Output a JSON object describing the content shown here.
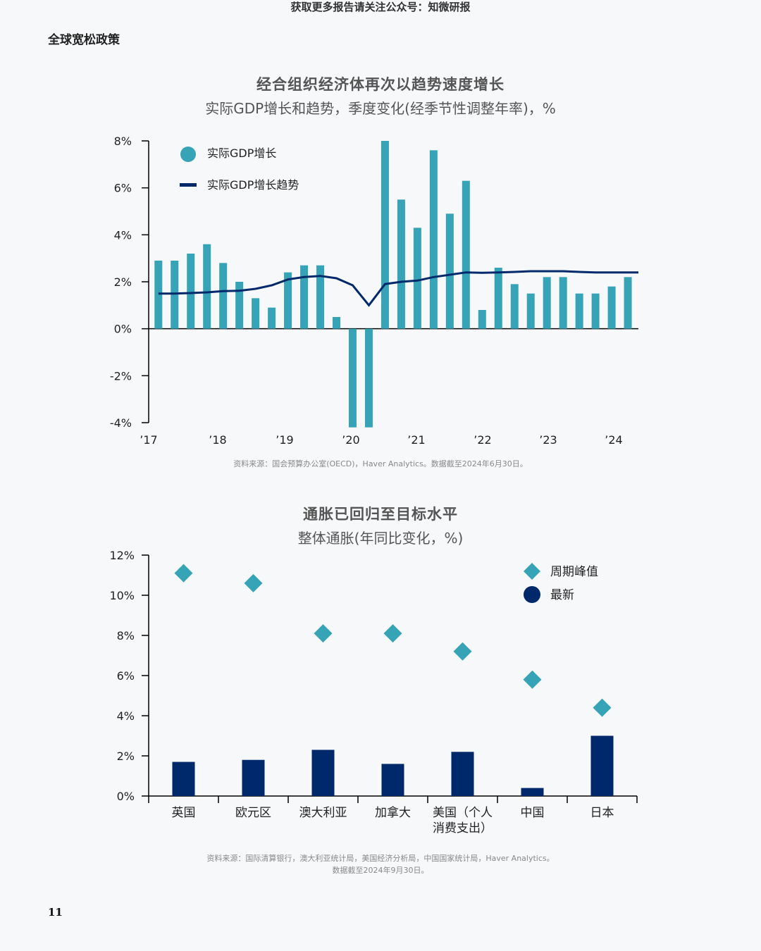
{
  "header": {
    "banner": "获取更多报告请关注公众号：知微研报",
    "section": "全球宽松政策"
  },
  "page_number": "11",
  "colors": {
    "teal": "#36a3b7",
    "navy": "#00296b",
    "axis": "#000000"
  },
  "charts": {
    "gdp": {
      "title": "经合组织经济体再次以趋势速度增长",
      "subtitle": "实际GDP增长和趋势，季度变化(经季节性调整年率)，%",
      "source": "资料来源：国会预算办公室(OECD)，Haver Analytics。数据截至2024年6月30日。"
    },
    "inflation": {
      "title": "通胀已回归至目标水平",
      "subtitle": "整体通胀(年同比变化，%)",
      "source_line1": "资料来源：国际清算银行，澳大利亚统计局，美国经济分析局，中国国家统计局，Haver Analytics。",
      "source_line2": "数据截至2024年9月30日。"
    }
  },
  "chart_data": [
    {
      "type": "bar",
      "title": "经合组织经济体再次以趋势速度增长",
      "subtitle": "实际GDP增长和趋势，季度变化(经季节性调整年率)，%",
      "ylim": [
        -4,
        8
      ],
      "yticks": [
        8,
        6,
        4,
        2,
        0,
        -2,
        -4
      ],
      "ytick_labels": [
        "8%",
        "6%",
        "4%",
        "2%",
        "0%",
        "-2%",
        "-4%"
      ],
      "xtick_labels": [
        "’17",
        "’18",
        "’19",
        "’20",
        "’21",
        "’22",
        "’23",
        "’24"
      ],
      "legend_position": "top-left",
      "series": [
        {
          "name": "实际GDP增长",
          "kind": "bar",
          "color": "#36a3b7",
          "values": [
            2.9,
            2.9,
            3.2,
            3.6,
            2.8,
            2.0,
            1.3,
            0.9,
            2.4,
            2.7,
            2.7,
            0.5,
            -4.2,
            -4.2,
            8.0,
            5.5,
            4.3,
            7.6,
            4.9,
            6.3,
            0.8,
            2.6,
            1.9,
            1.5,
            2.2,
            2.2,
            1.5,
            1.5,
            1.8,
            2.2
          ]
        },
        {
          "name": "实际GDP增长趋势",
          "kind": "line",
          "color": "#00296b",
          "values": [
            1.5,
            1.5,
            1.52,
            1.55,
            1.6,
            1.62,
            1.7,
            1.85,
            2.1,
            2.2,
            2.25,
            2.15,
            1.85,
            1.0,
            1.9,
            2.0,
            2.05,
            2.2,
            2.3,
            2.4,
            2.38,
            2.4,
            2.42,
            2.45,
            2.45,
            2.45,
            2.42,
            2.4,
            2.4,
            2.4
          ]
        }
      ]
    },
    {
      "type": "bar",
      "title": "通胀已回归至目标水平",
      "subtitle": "整体通胀(年同比变化，%)",
      "ylim": [
        0,
        12
      ],
      "yticks": [
        12,
        10,
        8,
        6,
        4,
        2,
        0
      ],
      "ytick_labels": [
        "12%",
        "10%",
        "8%",
        "6%",
        "4%",
        "2%",
        "0%"
      ],
      "categories": [
        "英国",
        "欧元区",
        "澳大利亚",
        "加拿大",
        "美国（个人\n消费支出）",
        "中国",
        "日本"
      ],
      "legend_position": "top-right",
      "series": [
        {
          "name": "周期峰值",
          "kind": "marker",
          "color": "#36a3b7",
          "values": [
            11.1,
            10.6,
            8.1,
            8.1,
            7.2,
            5.8,
            4.4
          ]
        },
        {
          "name": "最新",
          "kind": "bar",
          "color": "#00296b",
          "values": [
            1.7,
            1.8,
            2.3,
            1.6,
            2.2,
            0.4,
            3.0
          ]
        }
      ]
    }
  ]
}
